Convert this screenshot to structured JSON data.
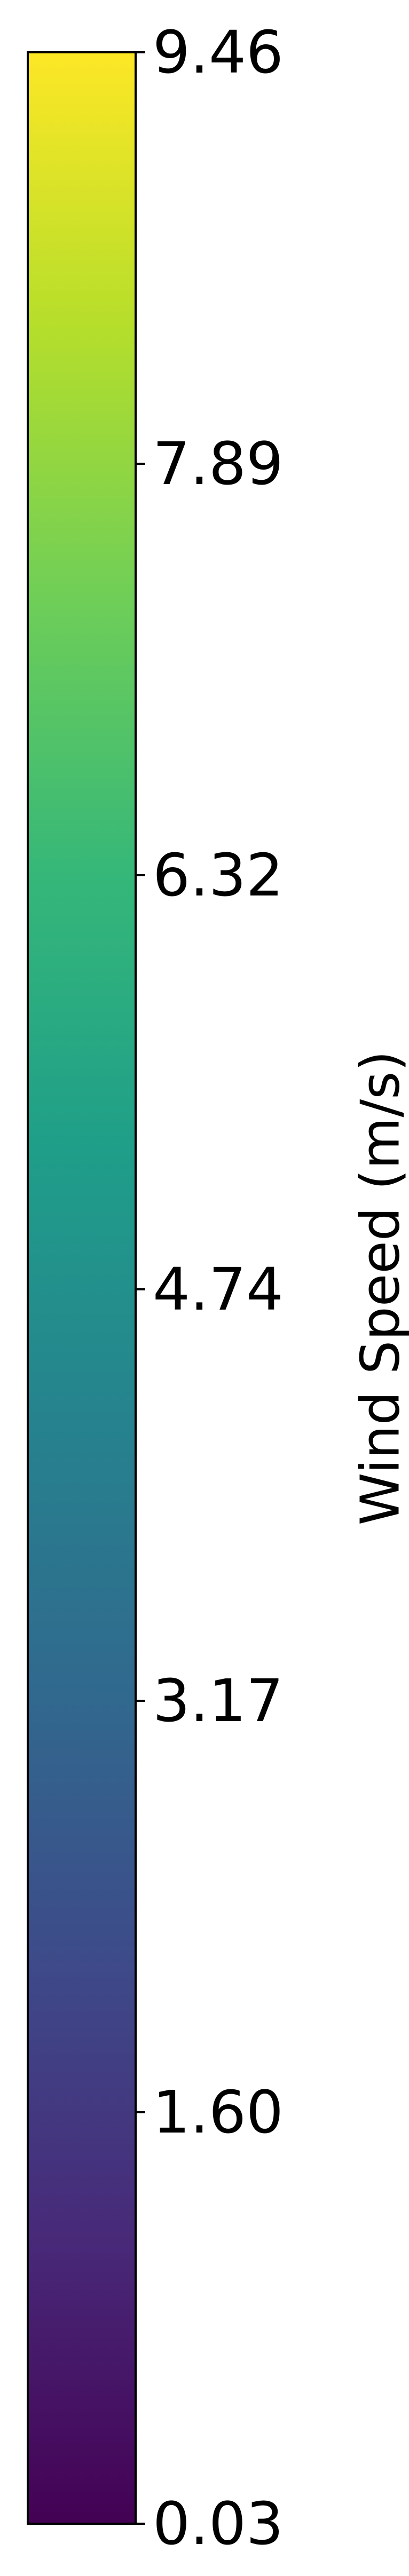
{
  "chart_data": {
    "type": "colorbar",
    "colormap": "viridis",
    "orientation": "vertical",
    "label": "Wind Speed (m/s)",
    "vmin": 0.03,
    "vmax": 9.46,
    "ticks": [
      {
        "value": 9.46,
        "label": "9.46"
      },
      {
        "value": 7.89,
        "label": "7.89"
      },
      {
        "value": 6.32,
        "label": "6.32"
      },
      {
        "value": 4.74,
        "label": "4.74"
      },
      {
        "value": 3.17,
        "label": "3.17"
      },
      {
        "value": 1.6,
        "label": "1.60"
      },
      {
        "value": 0.03,
        "label": "0.03"
      }
    ],
    "colors": {
      "stops": [
        "#440154",
        "#482878",
        "#3e4989",
        "#31688e",
        "#26828e",
        "#1f9e89",
        "#35b779",
        "#6ece58",
        "#b5de2b",
        "#fde725"
      ],
      "outline": "#000000"
    }
  }
}
